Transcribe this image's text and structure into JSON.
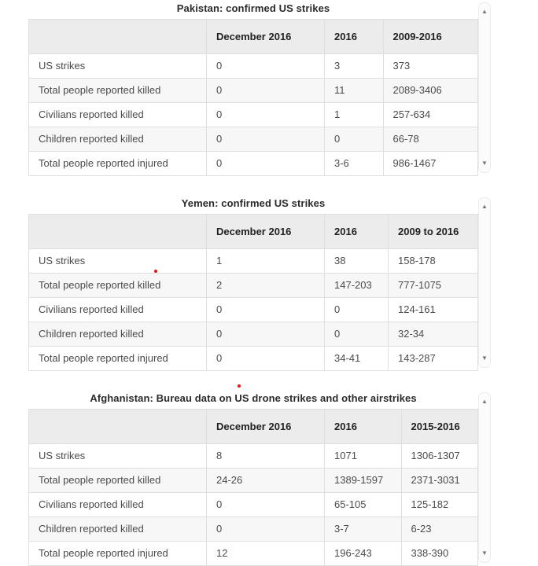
{
  "icons": {
    "scroll_up": "▲",
    "scroll_down": "▼"
  },
  "colors": {
    "header_bg": "#ececec",
    "row_stripe": "#f7f7f8",
    "table_border": "#dfdfdf",
    "title_text": "#2b2b2b",
    "cell_text": "#4b4b4b",
    "scroll_arrow": "#777777",
    "marker_red": "#e01313"
  },
  "sections": [
    {
      "title": "Pakistan: confirmed US strikes",
      "columns": [
        "",
        "December 2016",
        "2016",
        "2009-2016"
      ],
      "rows": [
        {
          "label": "US strikes",
          "values": [
            "0",
            "3",
            "373"
          ]
        },
        {
          "label": "Total people reported killed",
          "values": [
            "0",
            "11",
            "2089-3406"
          ]
        },
        {
          "label": "Civilians reported killed",
          "values": [
            "0",
            "1",
            "257-634"
          ]
        },
        {
          "label": "Children reported killed",
          "values": [
            "0",
            "0",
            "66-78"
          ]
        },
        {
          "label": "Total people reported injured",
          "values": [
            "0",
            "3-6",
            "986-1467"
          ]
        }
      ]
    },
    {
      "title": "Yemen: confirmed US strikes",
      "columns": [
        "",
        "December 2016",
        "2016",
        "2009 to 2016"
      ],
      "rows": [
        {
          "label": "US strikes",
          "values": [
            "1",
            "38",
            "158-178"
          ]
        },
        {
          "label": "Total people reported killed",
          "values": [
            "2",
            "147-203",
            "777-1075"
          ]
        },
        {
          "label": "Civilians reported killed",
          "values": [
            "0",
            "0",
            "124-161"
          ]
        },
        {
          "label": "Children reported killed",
          "values": [
            "0",
            "0",
            "32-34"
          ]
        },
        {
          "label": "Total people reported injured",
          "values": [
            "0",
            "34-41",
            "143-287"
          ]
        }
      ]
    },
    {
      "title": "Afghanistan: Bureau data on US drone strikes and other airstrikes",
      "columns": [
        "",
        "December 2016",
        "2016",
        "2015-2016"
      ],
      "rows": [
        {
          "label": "US strikes",
          "values": [
            "8",
            "1071",
            "1306-1307"
          ]
        },
        {
          "label": "Total people reported killed",
          "values": [
            "24-26",
            "1389-1597",
            "2371-3031"
          ]
        },
        {
          "label": "Civilians reported killed",
          "values": [
            "0",
            "65-105",
            "125-182"
          ]
        },
        {
          "label": "Children reported killed",
          "values": [
            "0",
            "3-7",
            "6-23"
          ]
        },
        {
          "label": "Total people reported injured",
          "values": [
            "12",
            "196-243",
            "338-390"
          ]
        }
      ]
    }
  ]
}
